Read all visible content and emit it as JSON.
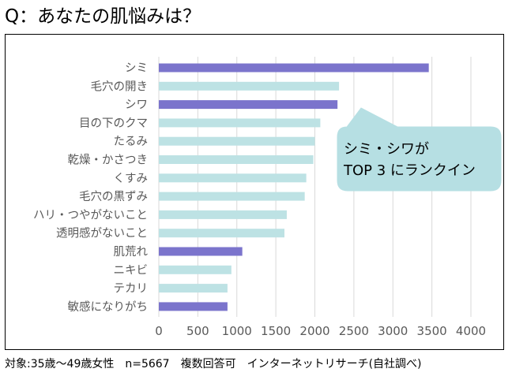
{
  "title": "Q：あなたの肌悩みは？",
  "footnote": "対象:35歳～49歳女性　n=5667　複数回答可　インターネットリサーチ(自社調べ)",
  "callout": {
    "line1": "シミ・シワが",
    "line2": "TOP 3 にランクイン"
  },
  "colors": {
    "highlight": "#7b74cc",
    "normal": "#bde2e4",
    "callout_fill": "#b6dfe3",
    "grid": "#d9d9d9",
    "label": "#595959"
  },
  "chart_data": {
    "type": "bar",
    "orientation": "horizontal",
    "title": "Q：あなたの肌悩みは？",
    "xlabel": "",
    "ylabel": "",
    "xlim": [
      0,
      4000
    ],
    "xticks": [
      0,
      500,
      1000,
      1500,
      2000,
      2500,
      3000,
      3500,
      4000
    ],
    "grid": true,
    "categories": [
      "シミ",
      "毛穴の開き",
      "シワ",
      "目の下のクマ",
      "たるみ",
      "乾燥・かさつき",
      "くすみ",
      "毛穴の黒ずみ",
      "ハリ・つやがないこと",
      "透明感がないこと",
      "肌荒れ",
      "ニキビ",
      "テカリ",
      "敏感になりがち"
    ],
    "values": [
      3460,
      2310,
      2290,
      2070,
      2000,
      1980,
      1890,
      1870,
      1640,
      1610,
      1070,
      930,
      880,
      880
    ],
    "highlighted": [
      true,
      false,
      true,
      false,
      false,
      false,
      false,
      false,
      false,
      false,
      true,
      false,
      false,
      true
    ]
  }
}
